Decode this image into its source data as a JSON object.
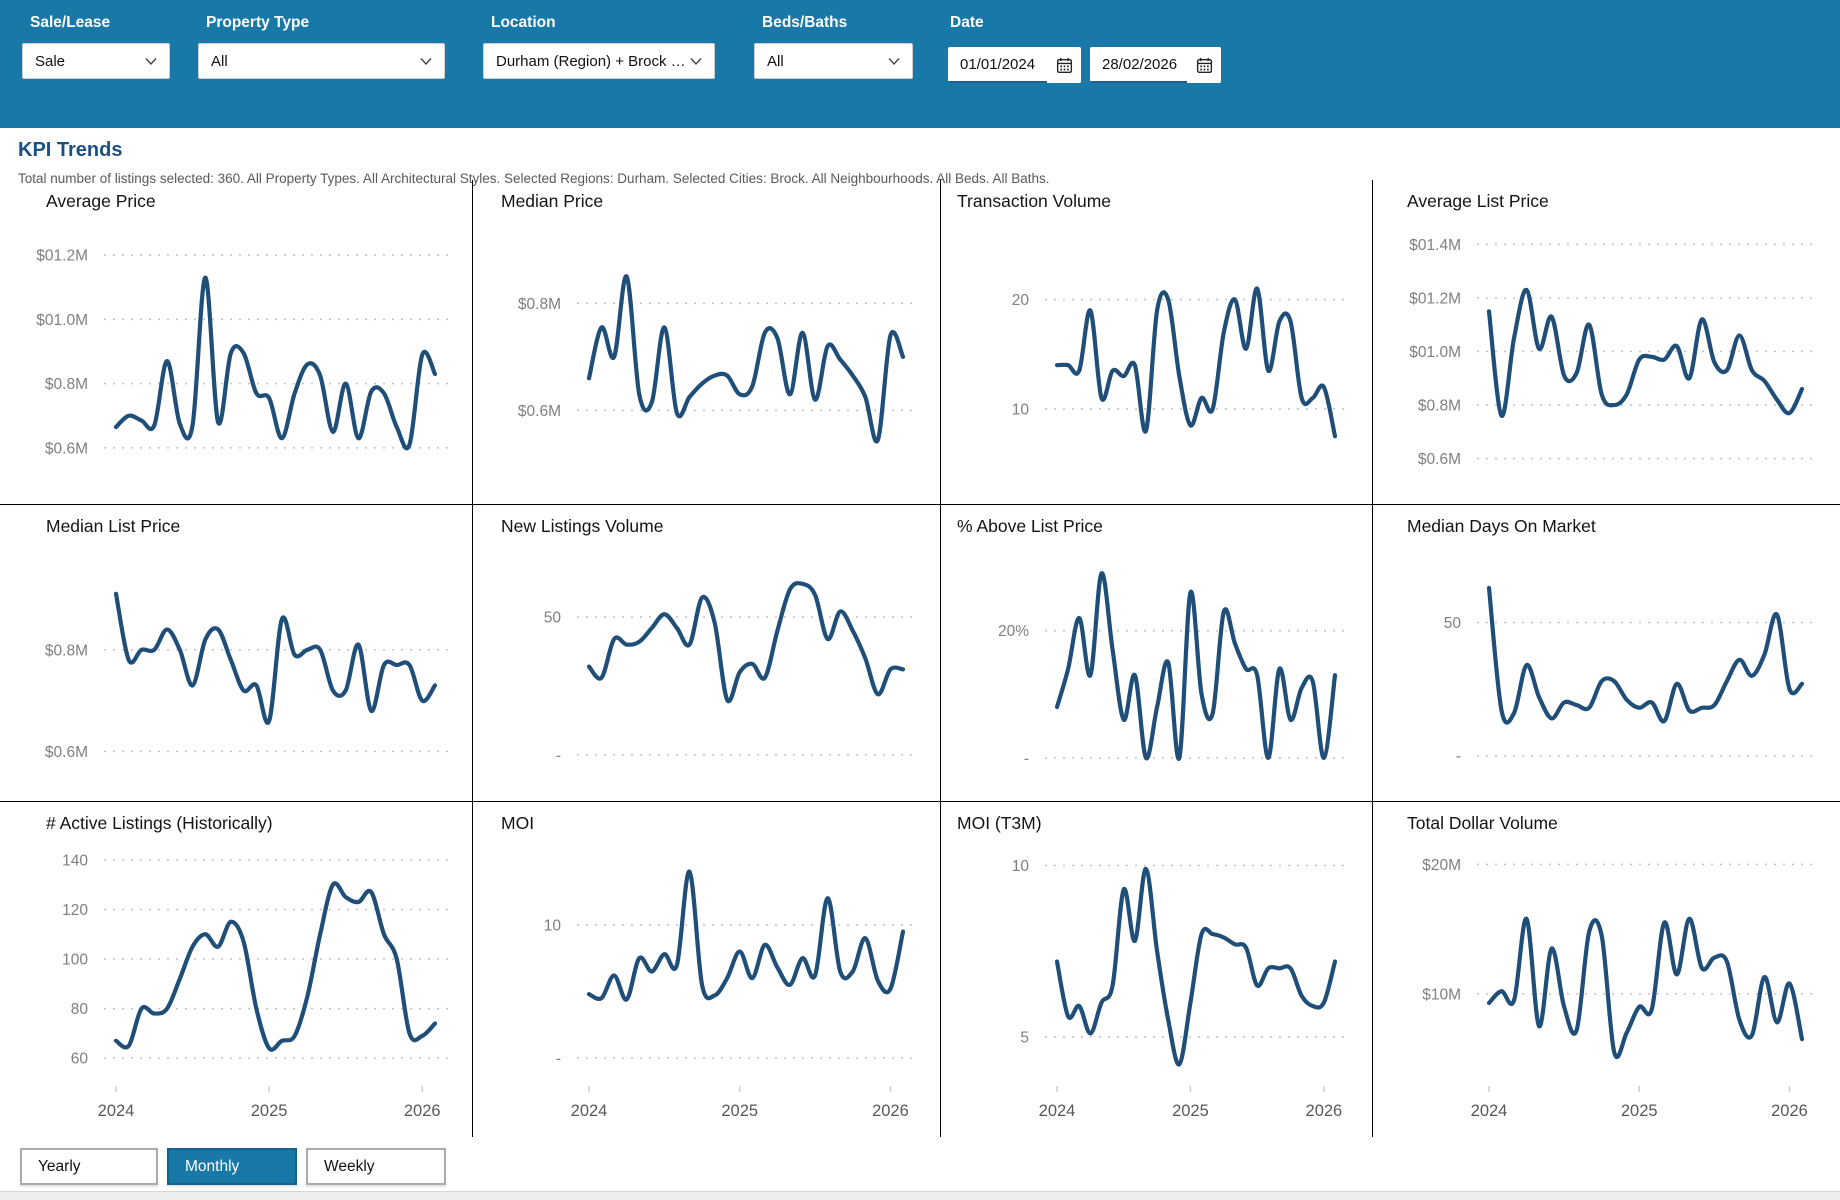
{
  "header": {
    "filters": [
      {
        "label": "Sale/Lease",
        "value": "Sale"
      },
      {
        "label": "Property Type",
        "value": "All"
      },
      {
        "label": "Location",
        "value": "Durham (Region) + Brock (…"
      },
      {
        "label": "Beds/Baths",
        "value": "All"
      }
    ],
    "date_label": "Date",
    "date_from": "01/01/2024",
    "date_to": "28/02/2026"
  },
  "page": {
    "title": "KPI Trends",
    "subtitle": "Total number of listings selected: 360. All Property Types. All Architectural Styles. Selected Regions: Durham. Selected Cities: Brock. All Neighbourhoods. All Beds. All Baths."
  },
  "period_toggle": {
    "options": [
      "Yearly",
      "Monthly",
      "Weekly"
    ],
    "selected": "Monthly"
  },
  "icons": {
    "dropdown": "chevron-down",
    "date_picker": "calendar"
  },
  "colors": {
    "accent_teal": "#1878a8",
    "line": "#1f4e79",
    "title_blue": "#1b5182",
    "grid_dot": "#c2c2c2",
    "tick_gray": "#7f7f7f",
    "year_gray": "#595959",
    "divider": "#000000"
  },
  "x_axis": {
    "labels": [
      "2024",
      "2025",
      "2026"
    ],
    "tick_positions": [
      0,
      12,
      24
    ],
    "points_per_series": 26
  },
  "chart_data": [
    {
      "type": "line",
      "title": "Average Price",
      "ylim": [
        0.5,
        1.3
      ],
      "yticks": [
        {
          "v": 1.2,
          "label": "$01.2M"
        },
        {
          "v": 1.0,
          "label": "$01.0M"
        },
        {
          "v": 0.8,
          "label": "$0.8M"
        },
        {
          "v": 0.6,
          "label": "$0.6M"
        }
      ],
      "x_axis_visible": false,
      "values": [
        0.665,
        0.7,
        0.685,
        0.67,
        0.87,
        0.675,
        0.67,
        1.13,
        0.68,
        0.895,
        0.895,
        0.77,
        0.755,
        0.63,
        0.77,
        0.86,
        0.825,
        0.65,
        0.8,
        0.63,
        0.775,
        0.77,
        0.665,
        0.61,
        0.89,
        0.83
      ]
    },
    {
      "type": "line",
      "title": "Median Price",
      "ylim": [
        0.47,
        0.95
      ],
      "yticks": [
        {
          "v": 0.8,
          "label": "$0.8M"
        },
        {
          "v": 0.6,
          "label": "$0.6M"
        }
      ],
      "x_axis_visible": false,
      "values": [
        0.66,
        0.755,
        0.7,
        0.85,
        0.63,
        0.615,
        0.755,
        0.595,
        0.625,
        0.65,
        0.665,
        0.665,
        0.63,
        0.645,
        0.745,
        0.735,
        0.63,
        0.745,
        0.62,
        0.72,
        0.695,
        0.665,
        0.625,
        0.545,
        0.74,
        0.7
      ]
    },
    {
      "type": "line",
      "title": "Transaction Volume",
      "ylim": [
        3.5,
        27
      ],
      "yticks": [
        {
          "v": 20,
          "label": "20"
        },
        {
          "v": 10,
          "label": "10"
        }
      ],
      "x_axis_visible": false,
      "values": [
        14,
        14,
        13.5,
        19,
        11,
        13.5,
        13,
        14,
        8,
        19,
        20,
        13,
        8.5,
        11,
        10,
        17,
        20,
        15.5,
        21,
        13.5,
        18,
        18,
        11,
        11,
        12,
        7.5
      ]
    },
    {
      "type": "line",
      "title": "Average List Price",
      "ylim": [
        0.52,
        1.48
      ],
      "yticks": [
        {
          "v": 1.4,
          "label": "$01.4M"
        },
        {
          "v": 1.2,
          "label": "$01.2M"
        },
        {
          "v": 1.0,
          "label": "$01.0M"
        },
        {
          "v": 0.8,
          "label": "$0.8M"
        },
        {
          "v": 0.6,
          "label": "$0.6M"
        }
      ],
      "x_axis_visible": false,
      "values": [
        1.15,
        0.76,
        1.05,
        1.23,
        1.01,
        1.13,
        0.91,
        0.92,
        1.1,
        0.84,
        0.8,
        0.84,
        0.97,
        0.98,
        0.97,
        1.02,
        0.9,
        1.12,
        0.96,
        0.93,
        1.06,
        0.93,
        0.89,
        0.82,
        0.77,
        0.86
      ]
    },
    {
      "type": "line",
      "title": "Median List Price",
      "ylim": [
        0.55,
        1.0
      ],
      "yticks": [
        {
          "v": 0.8,
          "label": "$0.8M"
        },
        {
          "v": 0.6,
          "label": "$0.6M"
        }
      ],
      "x_axis_visible": false,
      "values": [
        0.91,
        0.78,
        0.8,
        0.8,
        0.84,
        0.8,
        0.73,
        0.82,
        0.84,
        0.78,
        0.72,
        0.73,
        0.66,
        0.86,
        0.79,
        0.8,
        0.8,
        0.72,
        0.72,
        0.81,
        0.68,
        0.77,
        0.77,
        0.77,
        0.7,
        0.73
      ]
    },
    {
      "type": "line",
      "title": "New Listings Volume",
      "ylim": [
        -8,
        75
      ],
      "yticks": [
        {
          "v": 50,
          "label": "50"
        },
        {
          "v": 0,
          "label": "-"
        }
      ],
      "x_axis_visible": false,
      "values": [
        32,
        28,
        42,
        40,
        41,
        46,
        51,
        46,
        40,
        57,
        48,
        20,
        30,
        33,
        28,
        45,
        60,
        62,
        58,
        42,
        52,
        45,
        35,
        22,
        31,
        31
      ]
    },
    {
      "type": "line",
      "title": "% Above List Price",
      "ylim": [
        -3,
        33
      ],
      "yticks": [
        {
          "v": 20,
          "label": "20%"
        },
        {
          "v": 0,
          "label": "-"
        }
      ],
      "x_axis_visible": false,
      "values": [
        8,
        14,
        22,
        13,
        29,
        17,
        6,
        13,
        0,
        8,
        15,
        0,
        26,
        10,
        7,
        23,
        18,
        14,
        13,
        0,
        14,
        6,
        11,
        12,
        0,
        13
      ]
    },
    {
      "type": "line",
      "title": "Median Days On Market",
      "ylim": [
        -8,
        78
      ],
      "yticks": [
        {
          "v": 50,
          "label": "50"
        },
        {
          "v": 0,
          "label": "-"
        }
      ],
      "x_axis_visible": false,
      "values": [
        63,
        17,
        16,
        34,
        22,
        14,
        20,
        19,
        18,
        28,
        28,
        21,
        18,
        20,
        13,
        27,
        17,
        18,
        19,
        28,
        36,
        30,
        38,
        53,
        25,
        27
      ]
    },
    {
      "type": "line",
      "title": "# Active Listings (Historically)",
      "ylim": [
        52,
        146
      ],
      "yticks": [
        {
          "v": 140,
          "label": "140"
        },
        {
          "v": 120,
          "label": "120"
        },
        {
          "v": 100,
          "label": "100"
        },
        {
          "v": 80,
          "label": "80"
        },
        {
          "v": 60,
          "label": "60"
        }
      ],
      "x_axis_visible": true,
      "values": [
        67,
        65,
        80,
        78,
        80,
        92,
        105,
        110,
        105,
        115,
        107,
        80,
        64,
        67,
        69,
        85,
        110,
        130,
        125,
        123,
        127,
        110,
        100,
        70,
        69,
        74
      ]
    },
    {
      "type": "line",
      "title": "MOI",
      "ylim": [
        -1.5,
        16
      ],
      "yticks": [
        {
          "v": 10,
          "label": "10"
        },
        {
          "v": 0,
          "label": "-"
        }
      ],
      "x_axis_visible": true,
      "values": [
        4.8,
        4.5,
        6.2,
        4.4,
        7.5,
        6.5,
        7.8,
        7.0,
        14,
        5.5,
        4.7,
        6.0,
        8.0,
        6.0,
        8.5,
        6.8,
        5.5,
        7.5,
        6.2,
        12,
        6.5,
        6.5,
        9.0,
        5.8,
        5.2,
        9.5
      ]
    },
    {
      "type": "line",
      "title": "MOI (T3M)",
      "ylim": [
        3.8,
        10.6
      ],
      "yticks": [
        {
          "v": 10,
          "label": "10"
        },
        {
          "v": 5,
          "label": "5"
        }
      ],
      "x_axis_visible": true,
      "values": [
        7.2,
        5.6,
        5.9,
        5.1,
        6.0,
        6.5,
        9.3,
        7.8,
        9.9,
        7.5,
        5.5,
        4.2,
        6.0,
        8.0,
        8.0,
        7.9,
        7.7,
        7.6,
        6.5,
        7.0,
        7.0,
        7.0,
        6.2,
        5.9,
        6.0,
        7.2
      ]
    },
    {
      "type": "line",
      "title": "Total Dollar Volume",
      "ylim": [
        3.5,
        21.5
      ],
      "yticks": [
        {
          "v": 20,
          "label": "$20M"
        },
        {
          "v": 10,
          "label": "$10M"
        }
      ],
      "x_axis_visible": true,
      "values": [
        9.3,
        10.2,
        9.5,
        15.8,
        7.5,
        13.5,
        9.0,
        7.2,
        14.8,
        14.5,
        5.5,
        7.0,
        9.0,
        8.8,
        15.5,
        11.5,
        15.8,
        12.0,
        12.8,
        12.5,
        8.0,
        6.8,
        11.3,
        7.8,
        10.8,
        6.5
      ]
    }
  ]
}
